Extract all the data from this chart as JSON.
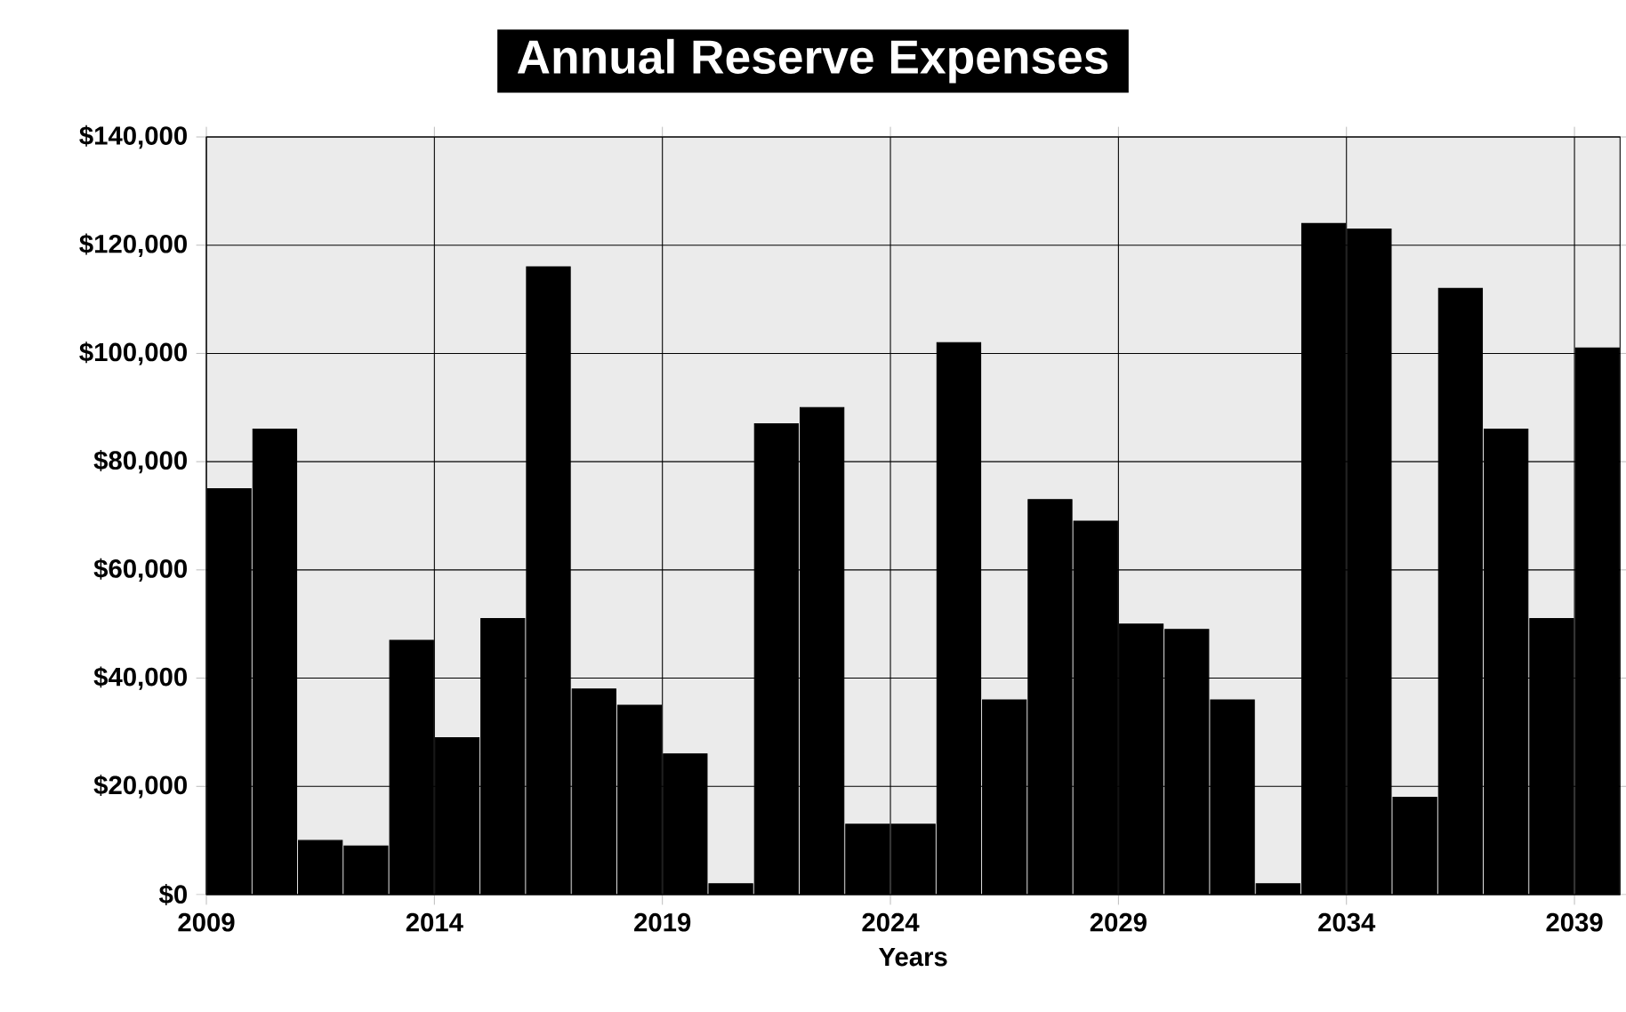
{
  "chart_data": {
    "type": "bar",
    "title": "Annual Reserve Expenses",
    "xlabel": "Years",
    "categories": [
      "2009",
      null,
      null,
      null,
      null,
      "2014",
      null,
      null,
      null,
      null,
      "2019",
      null,
      null,
      null,
      null,
      "2024",
      null,
      null,
      null,
      null,
      "2029",
      null,
      null,
      null,
      null,
      "2034",
      null,
      null,
      null,
      null,
      "2039"
    ],
    "values": [
      75000,
      86000,
      10000,
      9000,
      47000,
      29000,
      51000,
      116000,
      38000,
      35000,
      26000,
      2000,
      87000,
      90000,
      13000,
      13000,
      102000,
      36000,
      73000,
      69000,
      50000,
      49000,
      36000,
      2000,
      124000,
      123000,
      18000,
      112000,
      86000,
      51000,
      101000
    ],
    "color": "#000000",
    "ylim": [
      0,
      140000
    ],
    "yticks": [
      {
        "value": 0,
        "label": "$0"
      },
      {
        "value": 20000,
        "label": "$20,000"
      },
      {
        "value": 40000,
        "label": "$40,000"
      },
      {
        "value": 60000,
        "label": "$60,000"
      },
      {
        "value": 80000,
        "label": "$80,000"
      },
      {
        "value": 100000,
        "label": "$100,000"
      },
      {
        "value": 120000,
        "label": "$120,000"
      },
      {
        "value": 140000,
        "label": "$140,000"
      }
    ],
    "grid": true
  }
}
